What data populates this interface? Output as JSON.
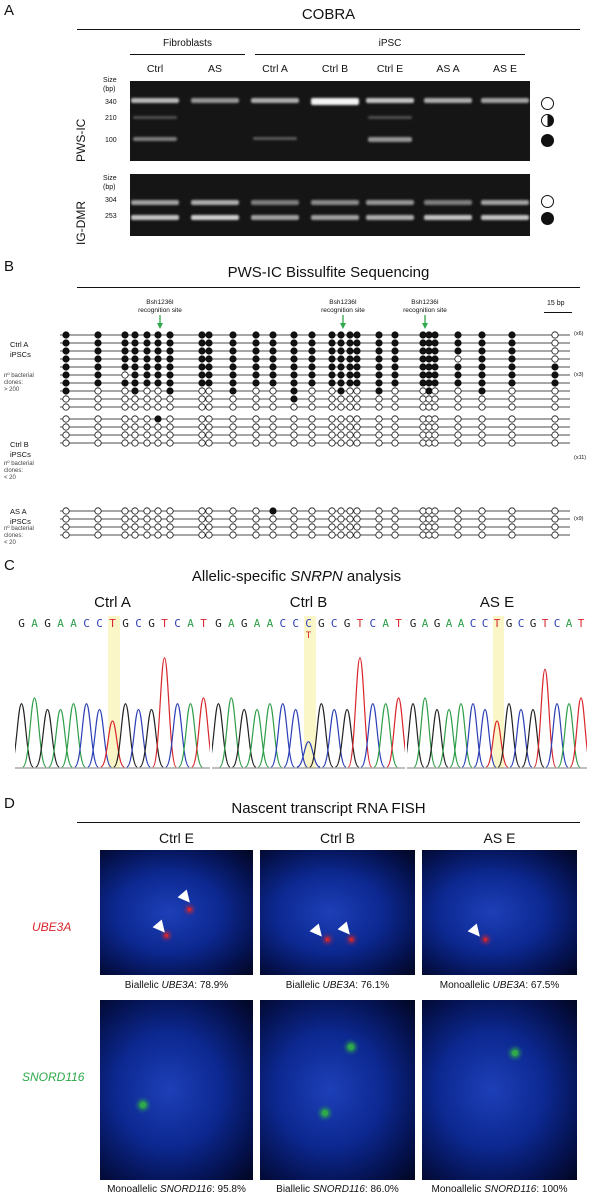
{
  "panelA": {
    "letter": "A",
    "title": "COBRA",
    "groups": [
      "Fibroblasts",
      "iPSC"
    ],
    "lanes": [
      "Ctrl",
      "AS",
      "Ctrl A",
      "Ctrl B",
      "Ctrl E",
      "AS A",
      "AS E"
    ],
    "gel1": {
      "name": "PWS-IC",
      "size_label": "Size\n(bp)",
      "markers": [
        "340",
        "210",
        "100"
      ]
    },
    "gel2": {
      "name": "IG-DMR",
      "size_label": "Size\n(bp)",
      "markers": [
        "304",
        "253"
      ]
    }
  },
  "panelB": {
    "letter": "B",
    "title": "PWS-IC Bissulfite Sequencing",
    "sites": [
      "Bsh1236I\nrecognition site",
      "Bsh1236I\nrecognition site",
      "Bsh1236I\nrecognition site"
    ],
    "scale": "15 bp",
    "groups": [
      {
        "label": "Ctrl A\niPSCs",
        "clones": "nº bacterial\nclones:\n> 200",
        "mult": [
          "(x6)",
          "(x3)"
        ]
      },
      {
        "label": "Ctrl B\niPSCs",
        "clones": "nº bacterial\nclones:\n< 20",
        "mult": [
          "(x11)"
        ]
      },
      {
        "label": "AS A\niPSCs",
        "clones": "nº bacterial\nclones:\n< 20",
        "mult": [
          "(x9)"
        ]
      }
    ]
  },
  "panelC": {
    "letter": "C",
    "title_pre": "Allelic-specific ",
    "title_gene": "SNRPN",
    "title_post": " analysis",
    "samples": [
      {
        "name": "Ctrl A",
        "seq": [
          "G",
          "A",
          "G",
          "A",
          "A",
          "C",
          "C",
          "T",
          "G",
          "C",
          "G",
          "T",
          "C",
          "A",
          "T"
        ],
        "extra": ""
      },
      {
        "name": "Ctrl B",
        "seq": [
          "G",
          "A",
          "G",
          "A",
          "A",
          "C",
          "C",
          "C",
          "G",
          "C",
          "G",
          "T",
          "C",
          "A",
          "T"
        ],
        "extra": "T"
      },
      {
        "name": "AS E",
        "seq": [
          "G",
          "A",
          "G",
          "A",
          "A",
          "C",
          "C",
          "T",
          "G",
          "C",
          "G",
          "T",
          "C",
          "A",
          "T"
        ],
        "extra": ""
      }
    ],
    "base_colors": {
      "G": "#222222",
      "A": "#2e9e48",
      "C": "#2c3fb5",
      "T": "#d8262b"
    }
  },
  "panelD": {
    "letter": "D",
    "title": "Nascent transcript RNA FISH",
    "columns": [
      "Ctrl E",
      "Ctrl B",
      "AS E"
    ],
    "row1_gene": "UBE3A",
    "row2_gene": "SNORD116",
    "row1_caps": [
      {
        "pre": "Biallelic ",
        "gene": "UBE3A",
        "post": ": 78.9%"
      },
      {
        "pre": "Biallelic ",
        "gene": "UBE3A",
        "post": ": 76.1%"
      },
      {
        "pre": "Monoallelic ",
        "gene": "UBE3A",
        "post": ": 67.5%"
      }
    ],
    "row2_caps": [
      {
        "pre": "Monoallelic ",
        "gene": "SNORD116",
        "post": ": 95.8%"
      },
      {
        "pre": "Biallelic ",
        "gene": "SNORD116",
        "post": ": 86.0%"
      },
      {
        "pre": "Monoallelic ",
        "gene": "SNORD116",
        "post": ": 100%"
      }
    ],
    "colors": {
      "red": "#d8262b",
      "green": "#2ea84a"
    }
  }
}
